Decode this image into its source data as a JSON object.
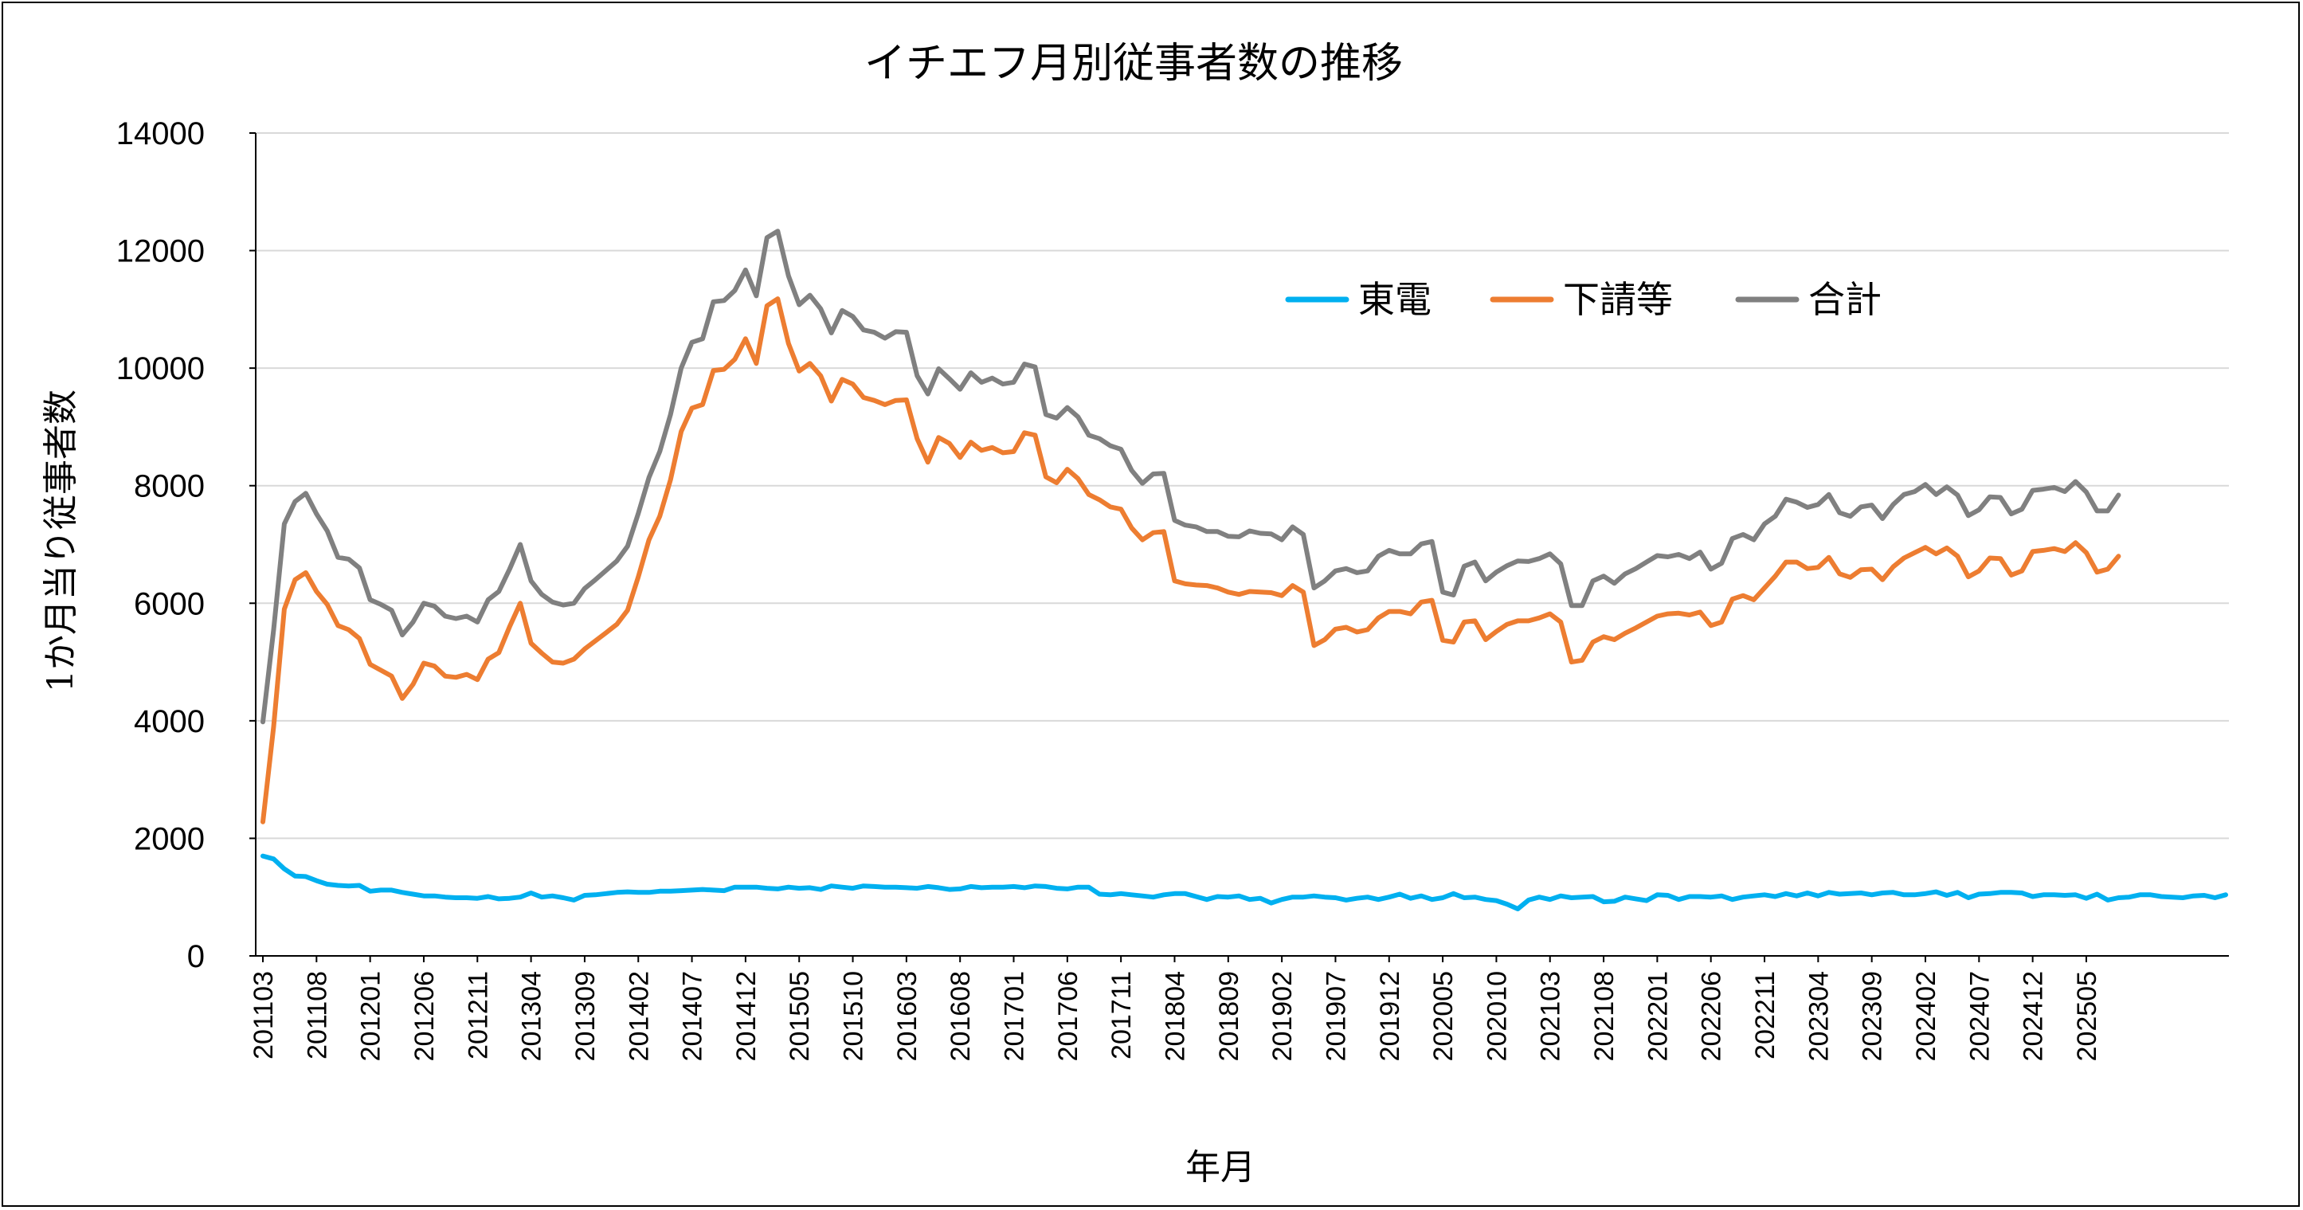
{
  "chart_data": {
    "type": "line",
    "title": "イチエフ月別従事者数の推移",
    "xlabel": "年月",
    "ylabel": "1か月当り従事者数",
    "ylim": [
      0,
      14000
    ],
    "yticks": [
      0,
      2000,
      4000,
      6000,
      8000,
      10000,
      12000,
      14000
    ],
    "grid": true,
    "legend_position": "top-right",
    "x_start": "201103",
    "x_tick_labels": [
      "201103",
      "201108",
      "201201",
      "201206",
      "201211",
      "201304",
      "201309",
      "201402",
      "201407",
      "201412",
      "201505",
      "201510",
      "201603",
      "201608",
      "201701",
      "201706",
      "201711",
      "201804",
      "201809",
      "201902",
      "201907",
      "201912",
      "202005",
      "202010",
      "202103",
      "202108",
      "202201",
      "202206",
      "202211",
      "202304",
      "202309",
      "202402",
      "202407",
      "202412",
      "202505"
    ],
    "series": [
      {
        "name": "東電",
        "color": "#00B0F0",
        "values": [
          1700,
          1650,
          1480,
          1360,
          1350,
          1280,
          1220,
          1200,
          1190,
          1200,
          1100,
          1120,
          1120,
          1080,
          1050,
          1020,
          1020,
          1000,
          990,
          990,
          980,
          1010,
          970,
          980,
          1000,
          1070,
          1000,
          1020,
          990,
          950,
          1030,
          1040,
          1060,
          1080,
          1090,
          1080,
          1080,
          1100,
          1100,
          1110,
          1120,
          1130,
          1120,
          1110,
          1170,
          1170,
          1170,
          1150,
          1140,
          1170,
          1150,
          1160,
          1130,
          1190,
          1170,
          1150,
          1190,
          1180,
          1170,
          1170,
          1160,
          1150,
          1180,
          1160,
          1130,
          1140,
          1180,
          1160,
          1170,
          1170,
          1180,
          1160,
          1190,
          1180,
          1150,
          1140,
          1170,
          1170,
          1050,
          1040,
          1060,
          1040,
          1020,
          1000,
          1040,
          1060,
          1060,
          1010,
          960,
          1010,
          1000,
          1020,
          960,
          980,
          900,
          960,
          1000,
          1000,
          1020,
          1000,
          990,
          950,
          980,
          1000,
          960,
          1000,
          1050,
          980,
          1020,
          960,
          990,
          1060,
          990,
          1000,
          960,
          940,
          880,
          800,
          950,
          1000,
          960,
          1020,
          990,
          1000,
          1010,
          920,
          930,
          1000,
          970,
          940,
          1040,
          1030,
          960,
          1010,
          1010,
          1000,
          1020,
          960,
          1000,
          1020,
          1040,
          1010,
          1060,
          1020,
          1070,
          1020,
          1080,
          1050,
          1060,
          1070,
          1040,
          1070,
          1080,
          1040,
          1040,
          1060,
          1090,
          1030,
          1080,
          990,
          1050,
          1060,
          1080,
          1080,
          1070,
          1010,
          1040,
          1040,
          1030,
          1040,
          980,
          1050,
          950,
          990,
          1000,
          1040,
          1040,
          1010,
          1000,
          990,
          1020,
          1030,
          990,
          1040
        ]
      },
      {
        "name": "下請等",
        "color": "#ED7D31",
        "values": [
          2280,
          3900,
          5900,
          6400,
          6520,
          6200,
          5980,
          5620,
          5550,
          5400,
          4960,
          4860,
          4760,
          4380,
          4620,
          4980,
          4930,
          4760,
          4740,
          4790,
          4700,
          5050,
          5160,
          5600,
          6000,
          5320,
          5150,
          5000,
          4980,
          5050,
          5220,
          5360,
          5500,
          5640,
          5880,
          6450,
          7080,
          7480,
          8100,
          8920,
          9320,
          9380,
          9960,
          9980,
          10150,
          10500,
          10080,
          11060,
          11180,
          10420,
          9950,
          10080,
          9870,
          9440,
          9810,
          9730,
          9500,
          9450,
          9380,
          9450,
          9460,
          8800,
          8400,
          8820,
          8720,
          8480,
          8740,
          8600,
          8650,
          8560,
          8580,
          8900,
          8860,
          8150,
          8050,
          8280,
          8120,
          7850,
          7760,
          7640,
          7600,
          7280,
          7080,
          7200,
          7220,
          6380,
          6330,
          6310,
          6300,
          6260,
          6190,
          6150,
          6200,
          6190,
          6180,
          6130,
          6300,
          6190,
          5280,
          5380,
          5560,
          5590,
          5510,
          5550,
          5750,
          5860,
          5860,
          5820,
          6020,
          6050,
          5370,
          5340,
          5680,
          5700,
          5380,
          5520,
          5640,
          5700,
          5700,
          5750,
          5820,
          5680,
          5000,
          5030,
          5340,
          5430,
          5380,
          5490,
          5580,
          5680,
          5780,
          5820,
          5830,
          5800,
          5850,
          5620,
          5680,
          6070,
          6130,
          6060,
          6260,
          6460,
          6700,
          6700,
          6590,
          6610,
          6780,
          6500,
          6440,
          6570,
          6580,
          6400,
          6620,
          6770,
          6860,
          6950,
          6840,
          6940,
          6800,
          6450,
          6550,
          6770,
          6760,
          6480,
          6550,
          6880,
          6900,
          6930,
          6880,
          7030,
          6860,
          6530,
          6580,
          6800
        ]
      },
      {
        "name": "合計",
        "color": "#808080",
        "values": [
          3980,
          5550,
          7350,
          7730,
          7870,
          7520,
          7230,
          6780,
          6750,
          6600,
          6060,
          5980,
          5880,
          5460,
          5680,
          6000,
          5950,
          5780,
          5740,
          5780,
          5680,
          6060,
          6200,
          6580,
          7000,
          6380,
          6150,
          6020,
          5970,
          6000,
          6250,
          6400,
          6560,
          6720,
          6970,
          7530,
          8140,
          8580,
          9210,
          10000,
          10440,
          10500,
          11130,
          11150,
          11320,
          11670,
          11230,
          12220,
          12330,
          11570,
          11080,
          11240,
          11010,
          10600,
          10980,
          10880,
          10650,
          10610,
          10510,
          10620,
          10610,
          9870,
          9560,
          9990,
          9820,
          9640,
          9920,
          9760,
          9830,
          9730,
          9760,
          10070,
          10020,
          9210,
          9150,
          9330,
          9170,
          8860,
          8800,
          8680,
          8620,
          8260,
          8040,
          8200,
          8210,
          7410,
          7330,
          7300,
          7220,
          7220,
          7140,
          7130,
          7230,
          7190,
          7180,
          7080,
          7300,
          7170,
          6260,
          6380,
          6550,
          6590,
          6520,
          6550,
          6800,
          6900,
          6840,
          6840,
          7010,
          7050,
          6190,
          6140,
          6630,
          6700,
          6380,
          6530,
          6640,
          6720,
          6710,
          6760,
          6840,
          6670,
          5960,
          5960,
          6380,
          6460,
          6340,
          6500,
          6590,
          6700,
          6810,
          6790,
          6830,
          6760,
          6870,
          6580,
          6680,
          7100,
          7170,
          7080,
          7350,
          7480,
          7770,
          7720,
          7630,
          7680,
          7850,
          7540,
          7480,
          7640,
          7670,
          7440,
          7680,
          7850,
          7900,
          8020,
          7850,
          7980,
          7840,
          7490,
          7590,
          7810,
          7800,
          7520,
          7600,
          7920,
          7940,
          7970,
          7900,
          8070,
          7890,
          7570,
          7570,
          7840
        ]
      }
    ]
  }
}
